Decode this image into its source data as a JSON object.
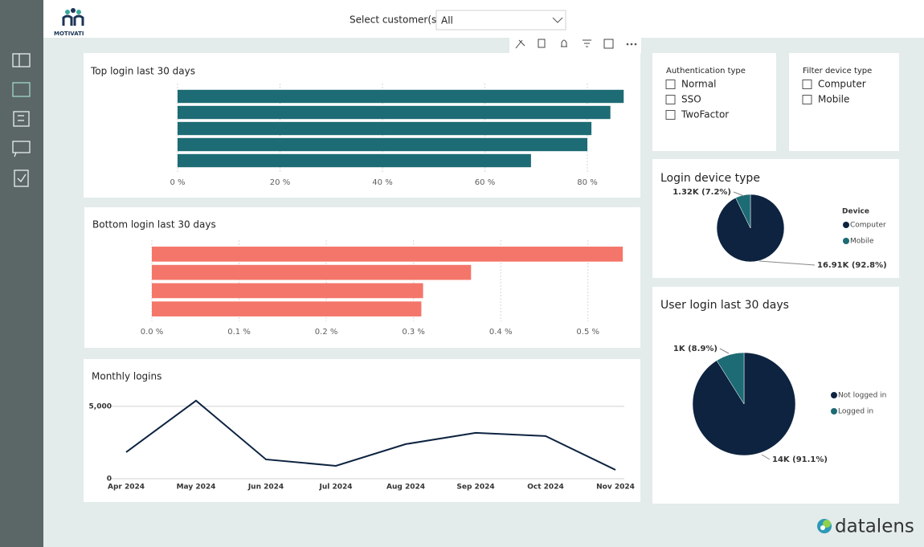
{
  "header": {
    "logo": "MOTIVATI",
    "customer_label": "Select customer(s)",
    "customer_value": "All"
  },
  "slicers": [
    {
      "title": "Authentication type",
      "options": [
        "Normal",
        "SSO",
        "TwoFactor"
      ]
    },
    {
      "title": "Filter device type",
      "options": [
        "Computer",
        "Mobile"
      ]
    }
  ],
  "chart_data": [
    {
      "type": "bar",
      "orientation": "horizontal",
      "title": "Top login last 30 days",
      "categories": [
        null,
        null,
        null,
        null,
        null
      ],
      "values": [
        87.1,
        84.5,
        80.8,
        80,
        69
      ],
      "color": "#1d6b74",
      "xlim": [
        0,
        88
      ],
      "xticks": [
        {
          "value": 0,
          "label": "0 %"
        },
        {
          "value": 20,
          "label": "20 %"
        },
        {
          "value": 40,
          "label": "40 %"
        },
        {
          "value": 60,
          "label": "60 %"
        },
        {
          "value": 80,
          "label": "80 %"
        }
      ],
      "grid": true
    },
    {
      "type": "bar",
      "orientation": "horizontal",
      "title": "Bottom login last 30 days",
      "categories": [
        null,
        null,
        null,
        null
      ],
      "values": [
        0.54,
        0.366,
        0.311,
        0.309
      ],
      "color": "#f4766a",
      "xlim": [
        0,
        0.55
      ],
      "xticks": [
        {
          "value": 0,
          "label": "0.0 %"
        },
        {
          "value": 0.1,
          "label": "0.1 %"
        },
        {
          "value": 0.2,
          "label": "0.2 %"
        },
        {
          "value": 0.3,
          "label": "0.3 %"
        },
        {
          "value": 0.4,
          "label": "0.4 %"
        },
        {
          "value": 0.5,
          "label": "0.5 %"
        }
      ],
      "grid": true
    },
    {
      "type": "line",
      "title": "Monthly logins",
      "categories": [
        "Apr 2024",
        "May 2024",
        "Jun 2024",
        "Jul 2024",
        "Aug 2024",
        "Sep 2024",
        "Oct 2024",
        "Nov 2024"
      ],
      "values": [
        1833,
        5389,
        1333,
        889,
        2389,
        3167,
        2944,
        611
      ],
      "color": "#0d2340",
      "ylim": [
        0,
        5600
      ],
      "yticks": [
        0,
        {
          "value": 5000,
          "label": "5,000"
        }
      ],
      "grid": true
    },
    {
      "type": "pie",
      "title": "Login device type",
      "legend_title": "Device",
      "categories": [
        "Computer",
        "Mobile"
      ],
      "values": [
        16910,
        1320
      ],
      "value_labels": [
        "16.91K (92.8%)",
        "1.32K (7.2%)"
      ],
      "colors": [
        "#0d2340",
        "#1d6b74"
      ]
    },
    {
      "type": "pie",
      "title": "User login last 30 days",
      "categories": [
        "Not logged in",
        "Logged in"
      ],
      "values": [
        14200,
        1390
      ],
      "value_labels": [
        "14K (91.1%)",
        "1K (8.9%)"
      ],
      "colors": [
        "#0d2340",
        "#1d6b74"
      ]
    }
  ],
  "footer": {
    "brand": "datalens"
  }
}
